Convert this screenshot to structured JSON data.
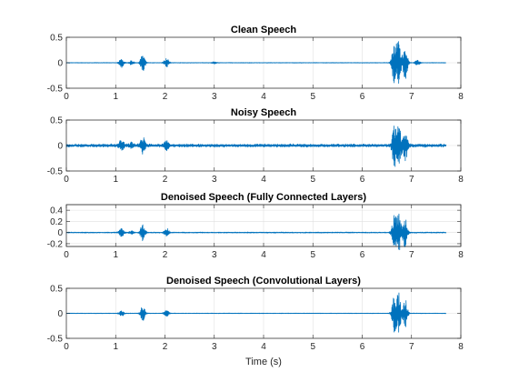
{
  "figure": {
    "background": "#ffffff",
    "line_color": "#0072bd"
  },
  "chart_data": [
    {
      "type": "line",
      "title": "Clean Speech",
      "xlabel": "",
      "ylabel": "",
      "xlim": [
        0,
        8
      ],
      "ylim": [
        -0.5,
        0.5
      ],
      "xticks": [
        0,
        1,
        2,
        3,
        4,
        5,
        6,
        7,
        8
      ],
      "yticks": [
        -0.5,
        0,
        0.5
      ],
      "grid": true,
      "signal_end": 7.7,
      "noise_amplitude": 0.006,
      "bursts": [
        {
          "t": 1.12,
          "amp": 0.09
        },
        {
          "t": 1.32,
          "amp": 0.04
        },
        {
          "t": 1.55,
          "amp": 0.17
        },
        {
          "t": 2.03,
          "amp": 0.1
        },
        {
          "t": 3.0,
          "amp": 0.02
        },
        {
          "t": 6.65,
          "amp": 0.4
        },
        {
          "t": 6.74,
          "amp": 0.44
        },
        {
          "t": 6.87,
          "amp": 0.36
        },
        {
          "t": 7.12,
          "amp": 0.05
        }
      ]
    },
    {
      "type": "line",
      "title": "Noisy Speech",
      "xlabel": "",
      "ylabel": "",
      "xlim": [
        0,
        8
      ],
      "ylim": [
        -0.5,
        0.5
      ],
      "xticks": [
        0,
        1,
        2,
        3,
        4,
        5,
        6,
        7,
        8
      ],
      "yticks": [
        -0.5,
        0,
        0.5
      ],
      "grid": true,
      "signal_end": 7.7,
      "noise_amplitude": 0.035,
      "bursts": [
        {
          "t": 1.12,
          "amp": 0.1
        },
        {
          "t": 1.32,
          "amp": 0.05
        },
        {
          "t": 1.55,
          "amp": 0.17
        },
        {
          "t": 2.03,
          "amp": 0.1
        },
        {
          "t": 6.65,
          "amp": 0.38
        },
        {
          "t": 6.74,
          "amp": 0.42
        },
        {
          "t": 6.87,
          "amp": 0.35
        }
      ]
    },
    {
      "type": "line",
      "title": "Denoised Speech (Fully Connected Layers)",
      "xlabel": "",
      "ylabel": "",
      "xlim": [
        0,
        8
      ],
      "ylim": [
        -0.25,
        0.5
      ],
      "xticks": [
        0,
        1,
        2,
        3,
        4,
        5,
        6,
        7,
        8
      ],
      "yticks": [
        -0.2,
        0,
        0.2,
        0.4
      ],
      "grid": true,
      "signal_end": 7.7,
      "noise_amplitude": 0.01,
      "bursts": [
        {
          "t": 1.12,
          "amp": 0.08
        },
        {
          "t": 1.32,
          "amp": 0.03
        },
        {
          "t": 1.55,
          "amp": 0.16
        },
        {
          "t": 2.03,
          "amp": 0.08
        },
        {
          "t": 6.65,
          "amp": 0.3
        },
        {
          "t": 6.74,
          "amp": 0.36
        },
        {
          "t": 6.87,
          "amp": 0.28
        }
      ]
    },
    {
      "type": "line",
      "title": "Denoised Speech (Convolutional Layers)",
      "xlabel": "Time (s)",
      "ylabel": "",
      "xlim": [
        0,
        8
      ],
      "ylim": [
        -0.5,
        0.5
      ],
      "xticks": [
        0,
        1,
        2,
        3,
        4,
        5,
        6,
        7,
        8
      ],
      "yticks": [
        -0.5,
        0,
        0.5
      ],
      "grid": true,
      "signal_end": 7.7,
      "noise_amplitude": 0.006,
      "bursts": [
        {
          "t": 1.12,
          "amp": 0.06
        },
        {
          "t": 1.55,
          "amp": 0.16
        },
        {
          "t": 2.03,
          "amp": 0.07
        },
        {
          "t": 6.65,
          "amp": 0.36
        },
        {
          "t": 6.74,
          "amp": 0.42
        },
        {
          "t": 6.87,
          "amp": 0.3
        }
      ]
    }
  ]
}
